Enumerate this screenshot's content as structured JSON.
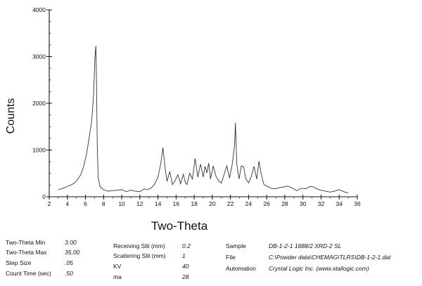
{
  "chart_data": {
    "type": "line",
    "title": "",
    "xlabel": "Two-Theta",
    "ylabel": "Counts",
    "xlim": [
      2,
      36
    ],
    "ylim": [
      0,
      4000
    ],
    "xticks": [
      "2",
      "4",
      "6",
      "8",
      "10",
      "12",
      "14",
      "16",
      "18",
      "20",
      "22",
      "24",
      "26",
      "28",
      "30",
      "32",
      "34",
      "36"
    ],
    "yticks": [
      "0",
      "1000",
      "2000",
      "3000",
      "4000"
    ],
    "series": [
      {
        "x": [
          3.0,
          3.5,
          4.0,
          4.5,
          5.0,
          5.5,
          5.8,
          6.1,
          6.4,
          6.7,
          6.9,
          7.05,
          7.15,
          7.22,
          7.3,
          7.4,
          7.6,
          8.0,
          8.5,
          9.0,
          9.5,
          10.0,
          10.5,
          11.0,
          11.5,
          12.0,
          12.5,
          12.8,
          13.2,
          13.6,
          14.0,
          14.3,
          14.55,
          14.8,
          15.0,
          15.3,
          15.6,
          15.9,
          16.2,
          16.5,
          16.8,
          17.0,
          17.2,
          17.5,
          17.8,
          18.1,
          18.4,
          18.7,
          19.0,
          19.2,
          19.4,
          19.6,
          19.8,
          20.1,
          20.4,
          20.7,
          21.0,
          21.3,
          21.6,
          21.9,
          22.2,
          22.45,
          22.55,
          22.7,
          22.95,
          23.2,
          23.45,
          23.7,
          24.0,
          24.3,
          24.6,
          24.9,
          25.15,
          25.4,
          25.7,
          26.0,
          26.5,
          27.0,
          27.5,
          27.9,
          28.3,
          28.8,
          29.3,
          29.8,
          30.3,
          30.8,
          31.15,
          31.5,
          32.0,
          32.5,
          33.0,
          33.5,
          34.0,
          34.5,
          35.0
        ],
        "y": [
          150,
          180,
          220,
          260,
          330,
          480,
          650,
          900,
          1250,
          1650,
          2200,
          3000,
          3230,
          2400,
          1100,
          420,
          220,
          150,
          120,
          130,
          140,
          150,
          110,
          140,
          120,
          110,
          170,
          150,
          180,
          260,
          420,
          700,
          1050,
          600,
          330,
          540,
          260,
          350,
          470,
          280,
          480,
          320,
          260,
          500,
          380,
          820,
          420,
          700,
          420,
          650,
          510,
          720,
          380,
          660,
          440,
          340,
          290,
          480,
          660,
          400,
          700,
          1100,
          1580,
          700,
          380,
          660,
          640,
          380,
          300,
          430,
          650,
          380,
          760,
          480,
          260,
          230,
          180,
          170,
          200,
          210,
          230,
          190,
          130,
          180,
          170,
          220,
          210,
          170,
          140,
          120,
          100,
          120,
          150,
          110,
          80
        ]
      }
    ],
    "grid": false
  },
  "footer": {
    "col1": [
      {
        "label": "Two-Theta Min",
        "value": "3.00"
      },
      {
        "label": "Two-Theta Max",
        "value": "35.00"
      },
      {
        "label": "Step Size",
        "value": ".05"
      },
      {
        "label": "Count Time (sec)",
        "value": ".50"
      }
    ],
    "col2": [
      {
        "label": "Receiving Slit (mm)",
        "value": "0.2"
      },
      {
        "label": "Scattering Slit (mm)",
        "value": "1"
      },
      {
        "label": "KV",
        "value": "40"
      },
      {
        "label": "ma",
        "value": "28"
      }
    ],
    "col3": [
      {
        "label": "Sample",
        "value": "DB-1-2-1 1688/2 XRD-2 SL"
      },
      {
        "label": "File",
        "value": "C:\\Powder data\\CHEMAG\\TLRS\\DB-1-2-1.dat"
      },
      {
        "label": "Automation",
        "value": "Crystal Logic Inc. (www.xtallogic.com)"
      }
    ]
  },
  "colors": {
    "trace": "#333333",
    "axis": "#111111"
  }
}
